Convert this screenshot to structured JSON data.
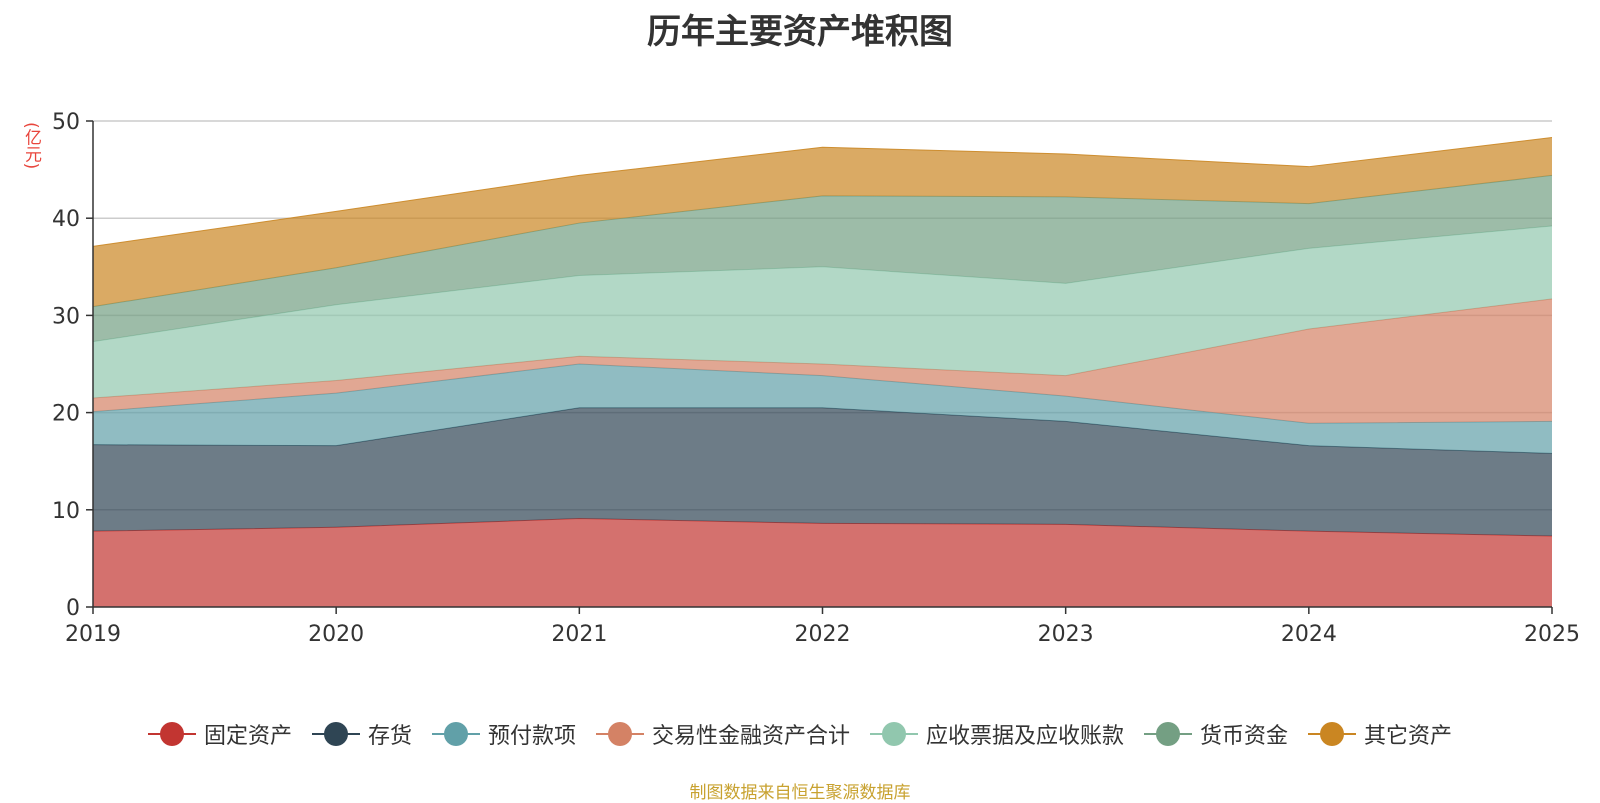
{
  "title": "历年主要资产堆积图",
  "unit_label": "(亿元)",
  "source_note": "制图数据来自恒生聚源数据库",
  "chart_data": {
    "type": "area",
    "stacked": true,
    "title": "历年主要资产堆积图",
    "ylabel": "(亿元)",
    "ylim": [
      0,
      50
    ],
    "yticks": [
      0,
      10,
      20,
      30,
      40,
      50
    ],
    "x": [
      "2019",
      "2020",
      "2021",
      "2022",
      "2023",
      "2024",
      "2025"
    ],
    "grid": true,
    "legend_position": "bottom",
    "series": [
      {
        "name": "固定资产",
        "color": "#c23531",
        "values": [
          7.8,
          8.2,
          9.1,
          8.6,
          8.5,
          7.8,
          7.3
        ]
      },
      {
        "name": "存货",
        "color": "#2f4554",
        "values": [
          8.9,
          8.4,
          11.4,
          11.9,
          10.6,
          8.8,
          8.5
        ]
      },
      {
        "name": "预付款项",
        "color": "#61a0a8",
        "values": [
          3.4,
          5.4,
          4.5,
          3.3,
          2.6,
          2.3,
          3.3
        ]
      },
      {
        "name": "交易性金融资产合计",
        "color": "#d48265",
        "values": [
          1.4,
          1.3,
          0.8,
          1.2,
          2.1,
          9.7,
          12.6
        ]
      },
      {
        "name": "应收票据及应收账款",
        "color": "#91c7ae",
        "values": [
          5.8,
          7.8,
          8.3,
          10.0,
          9.5,
          8.3,
          7.5
        ]
      },
      {
        "name": "货币资金",
        "color": "#749f83",
        "values": [
          3.6,
          3.8,
          5.4,
          7.3,
          8.9,
          4.6,
          5.2
        ]
      },
      {
        "name": "其它资产",
        "color": "#ca8622",
        "values": [
          6.2,
          5.8,
          4.9,
          5.0,
          4.4,
          3.8,
          3.9
        ]
      }
    ]
  }
}
